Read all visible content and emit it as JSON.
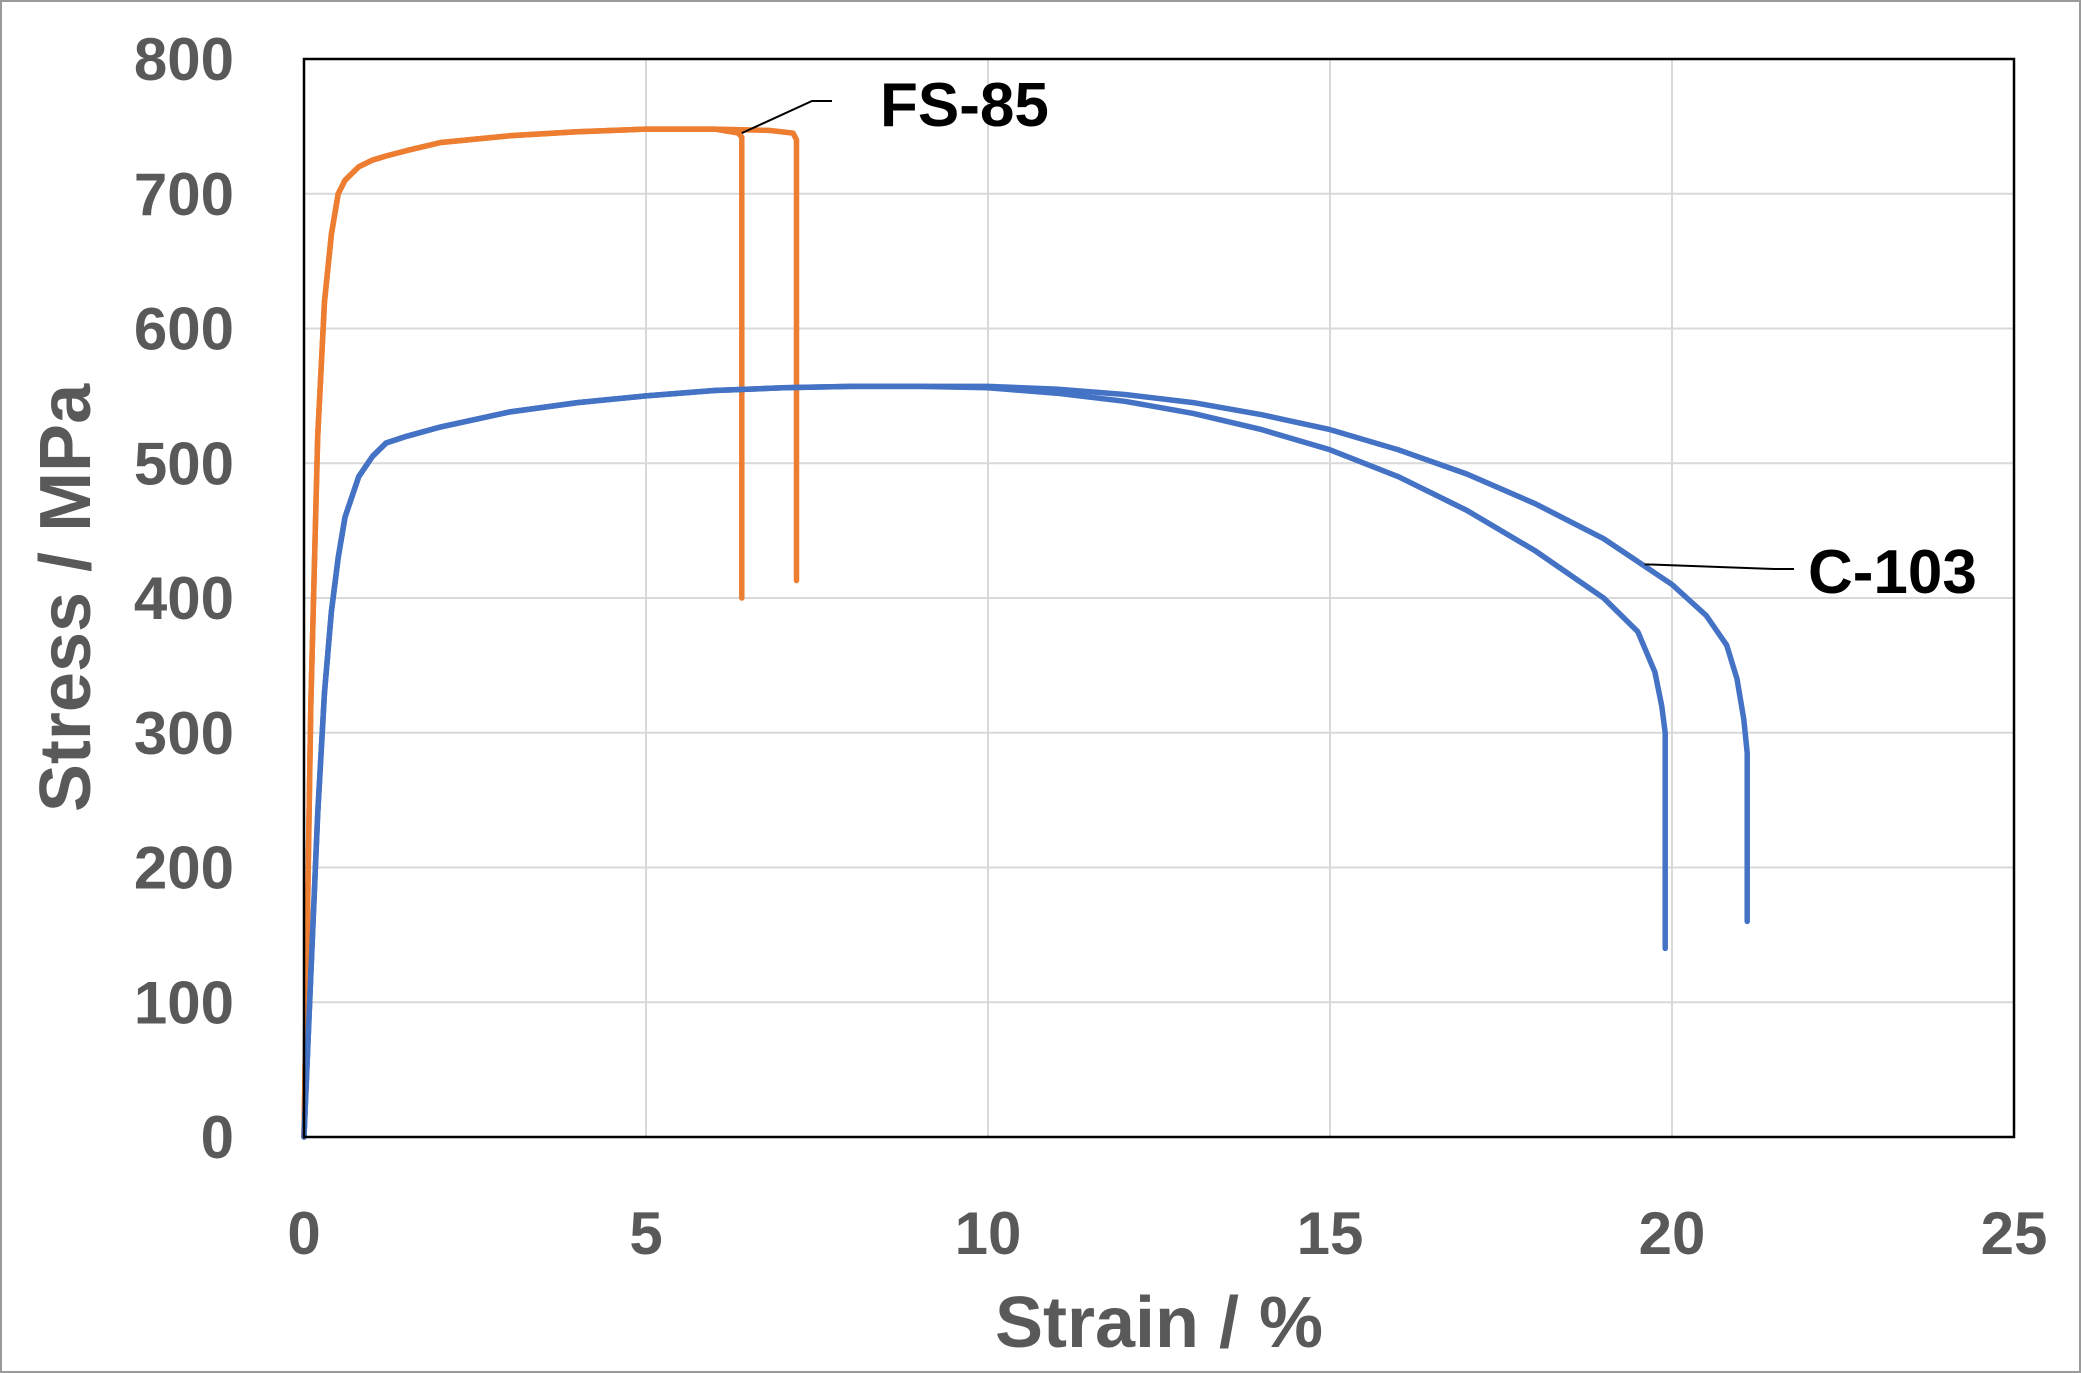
{
  "chart_data": {
    "type": "line",
    "xlabel": "Strain / %",
    "ylabel": "Stress / MPa",
    "xlim": [
      0,
      25
    ],
    "ylim": [
      0,
      800
    ],
    "xticks": [
      0,
      5,
      10,
      15,
      20,
      25
    ],
    "yticks": [
      0,
      100,
      200,
      300,
      400,
      500,
      600,
      700,
      800
    ],
    "grid": true,
    "legend": "none",
    "annotations": [
      {
        "text": "FS-85",
        "points_to": [
          6.4,
          745
        ],
        "color": "#000000"
      },
      {
        "text": "C-103",
        "points_to": [
          19.6,
          425
        ],
        "color": "#000000"
      }
    ],
    "series": [
      {
        "color": "#ED7D31",
        "x": [
          0,
          0.1,
          0.2,
          0.3,
          0.4,
          0.5,
          0.6,
          0.8,
          1.0,
          1.2,
          1.5,
          2.0,
          3.0,
          4.0,
          5.0,
          6.0,
          6.35,
          6.4,
          6.4
        ],
        "y": [
          0,
          320,
          520,
          620,
          670,
          700,
          710,
          720,
          725,
          728,
          732,
          738,
          743,
          746,
          748,
          748,
          745,
          742,
          400
        ]
      },
      {
        "color": "#ED7D31",
        "x": [
          0,
          0.1,
          0.2,
          0.3,
          0.4,
          0.5,
          0.6,
          0.8,
          1.0,
          1.2,
          1.5,
          2.0,
          3.0,
          4.0,
          5.0,
          6.0,
          6.8,
          7.15,
          7.2,
          7.2
        ],
        "y": [
          0,
          320,
          520,
          620,
          670,
          700,
          710,
          720,
          725,
          728,
          732,
          738,
          743,
          746,
          748,
          748,
          747,
          745,
          740,
          413
        ]
      },
      {
        "color": "#4472C4",
        "x": [
          0,
          0.1,
          0.2,
          0.3,
          0.4,
          0.5,
          0.6,
          0.8,
          1.0,
          1.2,
          1.5,
          2.0,
          3.0,
          4.0,
          5.0,
          6.0,
          7.0,
          8.0,
          9.0,
          10.0,
          11.0,
          12.0,
          13.0,
          14.0,
          15.0,
          16.0,
          17.0,
          18.0,
          19.0,
          19.5,
          19.75,
          19.85,
          19.9,
          19.9
        ],
        "y": [
          0,
          120,
          240,
          330,
          390,
          430,
          460,
          490,
          505,
          515,
          520,
          527,
          538,
          545,
          550,
          554,
          556,
          557,
          557,
          556,
          552,
          546,
          537,
          525,
          510,
          490,
          465,
          435,
          400,
          375,
          345,
          320,
          300,
          140
        ]
      },
      {
        "color": "#4472C4",
        "x": [
          0,
          0.1,
          0.2,
          0.3,
          0.4,
          0.5,
          0.6,
          0.8,
          1.0,
          1.2,
          1.5,
          2.0,
          3.0,
          4.0,
          5.0,
          6.0,
          7.0,
          8.0,
          9.0,
          10.0,
          11.0,
          12.0,
          13.0,
          14.0,
          15.0,
          16.0,
          17.0,
          18.0,
          19.0,
          20.0,
          20.5,
          20.8,
          20.95,
          21.05,
          21.1,
          21.1
        ],
        "y": [
          0,
          120,
          240,
          330,
          390,
          430,
          460,
          490,
          505,
          515,
          520,
          527,
          538,
          545,
          550,
          554,
          556,
          557,
          557,
          557,
          555,
          551,
          545,
          536,
          525,
          510,
          492,
          470,
          444,
          410,
          387,
          365,
          340,
          310,
          285,
          160
        ]
      }
    ]
  }
}
